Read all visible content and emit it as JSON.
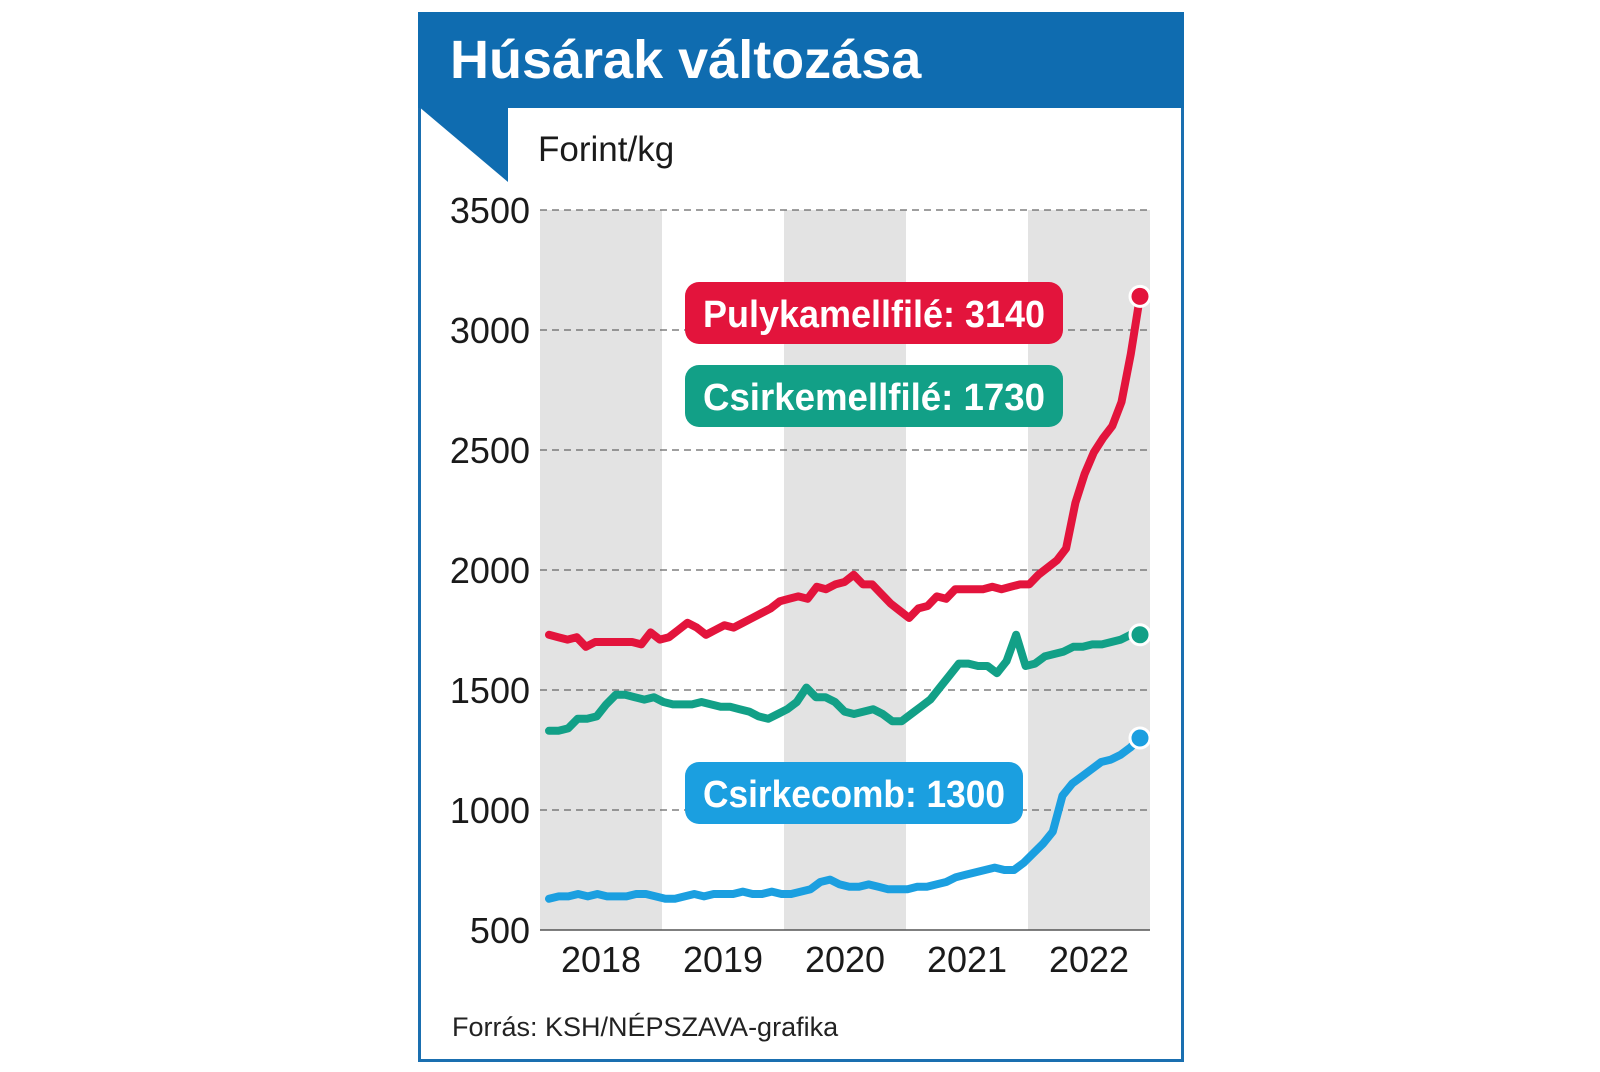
{
  "title": "Húsárak változása",
  "source": "Forrás: KSH/NÉPSZAVA-grafika",
  "colors": {
    "header": "#0f6cb0",
    "band": "#e3e3e3"
  },
  "chart_data": {
    "type": "line",
    "ylabel": "Forint/kg",
    "ylim": [
      500,
      3500
    ],
    "yticks": [
      "500",
      "1000",
      "1500",
      "2000",
      "2500",
      "3000",
      "3500"
    ],
    "year_labels": [
      "2018",
      "2019",
      "2020",
      "2021",
      "2022"
    ],
    "grid": "dashed horizontal",
    "series": [
      {
        "label": "Pulykamellfilé: 3140",
        "color": "#e3143c",
        "values": [
          1730,
          1720,
          1710,
          1720,
          1680,
          1700,
          1700,
          1700,
          1700,
          1700,
          1690,
          1740,
          1710,
          1720,
          1750,
          1780,
          1760,
          1730,
          1750,
          1770,
          1760,
          1780,
          1800,
          1820,
          1840,
          1870,
          1880,
          1890,
          1880,
          1930,
          1920,
          1940,
          1950,
          1980,
          1940,
          1940,
          1900,
          1860,
          1830,
          1800,
          1840,
          1850,
          1890,
          1880,
          1920,
          1920,
          1920,
          1920,
          1930,
          1920,
          1930,
          1940,
          1940,
          1980,
          2010,
          2040,
          2090,
          2280,
          2400,
          2490,
          2550,
          2600,
          2700,
          2900,
          3140
        ]
      },
      {
        "label": "Csirkemellfilé: 1730",
        "color": "#12a087",
        "values": [
          1330,
          1330,
          1340,
          1380,
          1380,
          1390,
          1440,
          1480,
          1480,
          1470,
          1460,
          1470,
          1450,
          1440,
          1440,
          1440,
          1450,
          1440,
          1430,
          1430,
          1420,
          1410,
          1390,
          1380,
          1400,
          1420,
          1450,
          1510,
          1470,
          1470,
          1450,
          1410,
          1400,
          1410,
          1420,
          1400,
          1370,
          1370,
          1400,
          1430,
          1460,
          1510,
          1560,
          1610,
          1610,
          1600,
          1600,
          1570,
          1620,
          1730,
          1600,
          1610,
          1640,
          1650,
          1660,
          1680,
          1680,
          1690,
          1690,
          1700,
          1710,
          1730,
          1730
        ]
      },
      {
        "label": "Csirkecomb: 1300",
        "color": "#1b9fe0",
        "values": [
          630,
          640,
          640,
          650,
          640,
          650,
          640,
          640,
          640,
          650,
          650,
          640,
          630,
          630,
          640,
          650,
          640,
          650,
          650,
          650,
          660,
          650,
          650,
          660,
          650,
          650,
          660,
          670,
          700,
          710,
          690,
          680,
          680,
          690,
          680,
          670,
          670,
          670,
          680,
          680,
          690,
          700,
          720,
          730,
          740,
          750,
          760,
          750,
          750,
          780,
          820,
          860,
          910,
          1060,
          1110,
          1140,
          1170,
          1200,
          1210,
          1230,
          1260,
          1300
        ]
      }
    ]
  }
}
